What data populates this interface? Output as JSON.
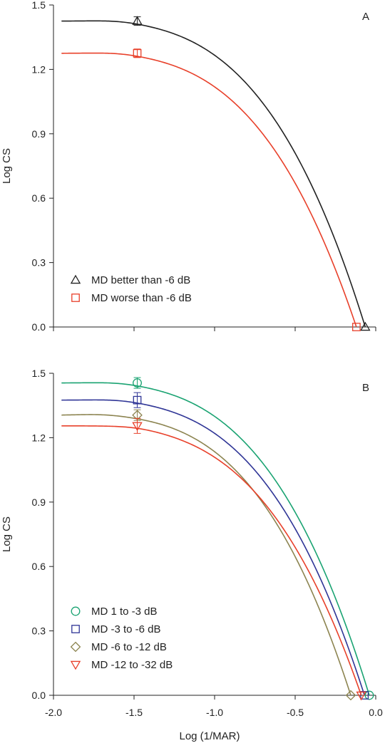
{
  "chart_data": [
    {
      "panel_label": "A",
      "type": "line",
      "xlabel": "",
      "ylabel": "Log CS",
      "xlim": [
        -2.0,
        0.0
      ],
      "ylim": [
        0.0,
        1.5
      ],
      "x_ticks": [
        -2.0,
        -1.5,
        -1.0,
        -0.5,
        0.0
      ],
      "y_ticks": [
        0.0,
        0.3,
        0.6,
        0.9,
        1.2,
        1.5
      ],
      "y_tick_labels": [
        "0.0",
        "0.3",
        "0.6",
        "0.9",
        "1.2",
        "1.5"
      ],
      "x_tick_labels": [],
      "legend": "bottom-left",
      "grid": false,
      "series": [
        {
          "name": "MD better than -6 dB",
          "color": "#222222",
          "marker": "triangle-up",
          "points": [
            {
              "x": -1.48,
              "y": 1.425,
              "err": 0.02
            },
            {
              "x": -0.065,
              "y": 0.0,
              "err": 0
            }
          ],
          "curve": {
            "peak": 1.425,
            "x_peak": -1.6,
            "cutoff": -0.065
          }
        },
        {
          "name": "MD worse than -6 dB",
          "color": "#e8402a",
          "marker": "square",
          "points": [
            {
              "x": -1.48,
              "y": 1.275,
              "err": 0.02
            },
            {
              "x": -0.12,
              "y": 0.0,
              "err": 0
            }
          ],
          "curve": {
            "peak": 1.275,
            "x_peak": -1.6,
            "cutoff": -0.12
          }
        }
      ]
    },
    {
      "panel_label": "B",
      "type": "line",
      "xlabel": "Log (1/MAR)",
      "ylabel": "Log CS",
      "xlim": [
        -2.0,
        0.0
      ],
      "ylim": [
        0.0,
        1.5
      ],
      "x_ticks": [
        -2.0,
        -1.5,
        -1.0,
        -0.5,
        0.0
      ],
      "y_ticks": [
        0.0,
        0.3,
        0.6,
        0.9,
        1.2,
        1.5
      ],
      "y_tick_labels": [
        "0.0",
        "0.3",
        "0.6",
        "0.9",
        "1.2",
        "1.5"
      ],
      "x_tick_labels": [
        "-2.0",
        "-1.5",
        "-1.0",
        "-0.5",
        "0.0"
      ],
      "legend": "bottom-left",
      "grid": false,
      "series": [
        {
          "name": "MD 1 to -3 dB",
          "color": "#1aa372",
          "marker": "circle",
          "points": [
            {
              "x": -1.48,
              "y": 1.455,
              "err": 0.025
            },
            {
              "x": -0.04,
              "y": 0.0,
              "err": 0
            }
          ],
          "curve": {
            "peak": 1.455,
            "x_peak": -1.6,
            "cutoff": -0.04
          }
        },
        {
          "name": "MD -3 to -6 dB",
          "color": "#2f3596",
          "marker": "square",
          "points": [
            {
              "x": -1.48,
              "y": 1.375,
              "err": 0.035
            },
            {
              "x": -0.07,
              "y": 0.0,
              "err": 0
            }
          ],
          "curve": {
            "peak": 1.375,
            "x_peak": -1.6,
            "cutoff": -0.07
          }
        },
        {
          "name": "MD -6 to -12 dB",
          "color": "#8c8450",
          "marker": "diamond",
          "points": [
            {
              "x": -1.48,
              "y": 1.305,
              "err": 0.025
            },
            {
              "x": -0.155,
              "y": 0.0,
              "err": 0
            }
          ],
          "curve": {
            "peak": 1.305,
            "x_peak": -1.7,
            "cutoff": -0.155
          }
        },
        {
          "name": "MD -12 to -32 dB",
          "color": "#e8402a",
          "marker": "triangle-down",
          "points": [
            {
              "x": -1.48,
              "y": 1.255,
              "err": 0.035
            },
            {
              "x": -0.09,
              "y": 0.0,
              "err": 0
            }
          ],
          "curve": {
            "peak": 1.255,
            "x_peak": -1.5,
            "cutoff": -0.09
          }
        }
      ]
    }
  ]
}
